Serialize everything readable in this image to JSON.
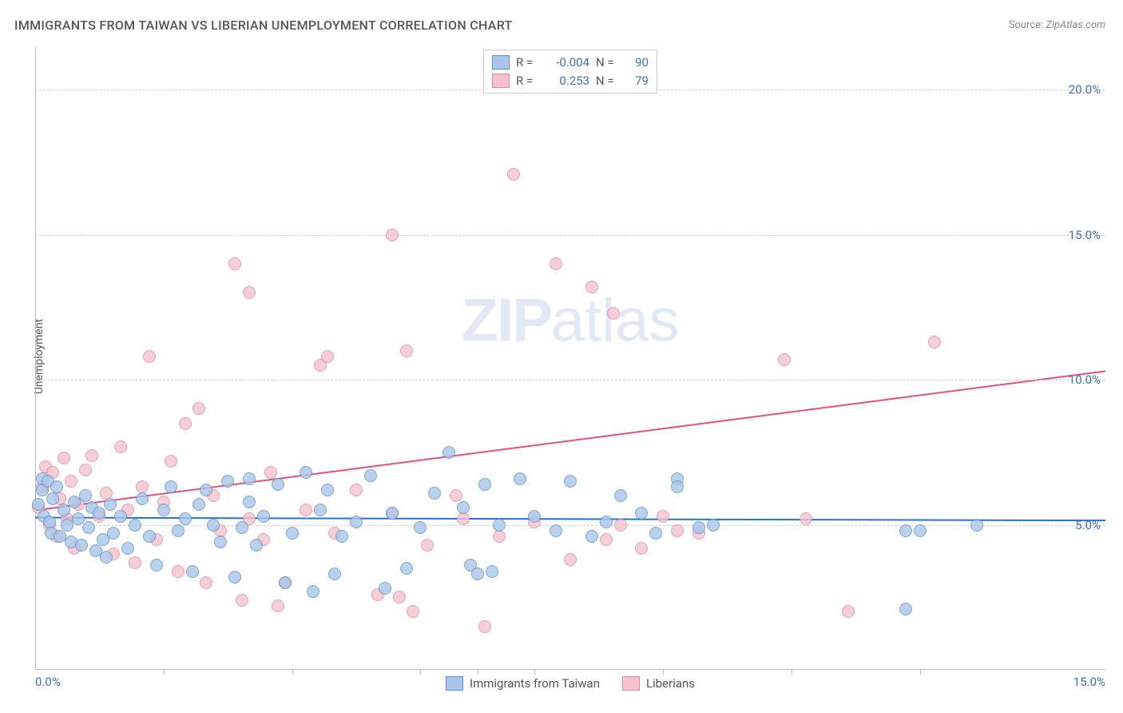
{
  "title": "IMMIGRANTS FROM TAIWAN VS LIBERIAN UNEMPLOYMENT CORRELATION CHART",
  "source_label": "Source:",
  "source_name": "ZipAtlas.com",
  "ylabel": "Unemployment",
  "watermark_zip": "ZIP",
  "watermark_atlas": "atlas",
  "chart": {
    "type": "scatter",
    "xlim": [
      0,
      15
    ],
    "ylim": [
      0,
      21.5
    ],
    "x_ticks": [
      0,
      15
    ],
    "x_tick_labels": [
      "0.0%",
      "15.0%"
    ],
    "x_minor_ticks": [
      1.8,
      3.6,
      5.4,
      6.2,
      7.0,
      8.8,
      10.6,
      12.4
    ],
    "y_ticks": [
      5,
      10,
      15,
      20
    ],
    "y_tick_labels": [
      "5.0%",
      "10.0%",
      "15.0%",
      "20.0%"
    ],
    "grid_color": "#d0d0d0",
    "axis_color": "#bbbbbb",
    "background_color": "#ffffff",
    "marker_radius": 8,
    "marker_border_width": 1,
    "marker_fill_opacity": 0.35,
    "trend_line_width": 2,
    "series": [
      {
        "name": "Immigrants from Taiwan",
        "color_fill": "#a9c6ea",
        "color_stroke": "#5f8fd1",
        "trend_color": "#2e6fd1",
        "R": "-0.004",
        "N": "90",
        "trend": {
          "y_at_x0": 5.25,
          "y_at_xmax": 5.15
        },
        "points": [
          [
            0.05,
            5.7
          ],
          [
            0.1,
            6.6
          ],
          [
            0.1,
            6.2
          ],
          [
            0.12,
            5.3
          ],
          [
            0.18,
            6.5
          ],
          [
            0.2,
            5.1
          ],
          [
            0.22,
            4.7
          ],
          [
            0.25,
            5.9
          ],
          [
            0.3,
            6.3
          ],
          [
            0.35,
            4.6
          ],
          [
            0.4,
            5.5
          ],
          [
            0.45,
            5.0
          ],
          [
            0.5,
            4.4
          ],
          [
            0.55,
            5.8
          ],
          [
            0.6,
            5.2
          ],
          [
            0.65,
            4.3
          ],
          [
            0.7,
            6.0
          ],
          [
            0.75,
            4.9
          ],
          [
            0.8,
            5.6
          ],
          [
            0.85,
            4.1
          ],
          [
            0.9,
            5.4
          ],
          [
            0.95,
            4.5
          ],
          [
            1.0,
            3.9
          ],
          [
            1.05,
            5.7
          ],
          [
            1.1,
            4.7
          ],
          [
            1.2,
            5.3
          ],
          [
            1.3,
            4.2
          ],
          [
            1.4,
            5.0
          ],
          [
            1.5,
            5.9
          ],
          [
            1.6,
            4.6
          ],
          [
            1.7,
            3.6
          ],
          [
            1.8,
            5.5
          ],
          [
            1.9,
            6.3
          ],
          [
            2.0,
            4.8
          ],
          [
            2.1,
            5.2
          ],
          [
            2.2,
            3.4
          ],
          [
            2.3,
            5.7
          ],
          [
            2.4,
            6.2
          ],
          [
            2.5,
            5.0
          ],
          [
            2.6,
            4.4
          ],
          [
            2.7,
            6.5
          ],
          [
            2.8,
            3.2
          ],
          [
            2.9,
            4.9
          ],
          [
            3.0,
            5.8
          ],
          [
            3.0,
            6.6
          ],
          [
            3.1,
            4.3
          ],
          [
            3.2,
            5.3
          ],
          [
            3.4,
            6.4
          ],
          [
            3.5,
            3.0
          ],
          [
            3.6,
            4.7
          ],
          [
            3.8,
            6.8
          ],
          [
            3.9,
            2.7
          ],
          [
            4.0,
            5.5
          ],
          [
            4.1,
            6.2
          ],
          [
            4.2,
            3.3
          ],
          [
            4.3,
            4.6
          ],
          [
            4.5,
            5.1
          ],
          [
            4.7,
            6.7
          ],
          [
            4.9,
            2.8
          ],
          [
            5.0,
            5.4
          ],
          [
            5.2,
            3.5
          ],
          [
            5.4,
            4.9
          ],
          [
            5.6,
            6.1
          ],
          [
            5.8,
            7.5
          ],
          [
            6.0,
            5.6
          ],
          [
            6.1,
            3.6
          ],
          [
            6.2,
            3.3
          ],
          [
            6.3,
            6.4
          ],
          [
            6.4,
            3.4
          ],
          [
            6.5,
            5.0
          ],
          [
            6.8,
            6.6
          ],
          [
            7.0,
            5.3
          ],
          [
            7.3,
            4.8
          ],
          [
            7.5,
            6.5
          ],
          [
            7.8,
            4.6
          ],
          [
            8.0,
            5.1
          ],
          [
            8.2,
            6.0
          ],
          [
            8.5,
            5.4
          ],
          [
            8.7,
            4.7
          ],
          [
            9.0,
            6.6
          ],
          [
            9.0,
            6.3
          ],
          [
            9.3,
            4.9
          ],
          [
            9.5,
            5.0
          ],
          [
            12.2,
            2.1
          ],
          [
            12.2,
            4.8
          ],
          [
            12.4,
            4.8
          ],
          [
            13.2,
            5.0
          ]
        ]
      },
      {
        "name": "Liberians",
        "color_fill": "#f5c2cd",
        "color_stroke": "#e08aa0",
        "trend_color": "#e3517a",
        "R": "0.253",
        "N": "79",
        "trend": {
          "y_at_x0": 5.5,
          "y_at_xmax": 10.3
        },
        "points": [
          [
            0.05,
            5.6
          ],
          [
            0.1,
            6.3
          ],
          [
            0.15,
            7.0
          ],
          [
            0.2,
            5.0
          ],
          [
            0.25,
            6.8
          ],
          [
            0.3,
            4.6
          ],
          [
            0.35,
            5.9
          ],
          [
            0.4,
            7.3
          ],
          [
            0.45,
            5.2
          ],
          [
            0.5,
            6.5
          ],
          [
            0.55,
            4.2
          ],
          [
            0.6,
            5.7
          ],
          [
            0.7,
            6.9
          ],
          [
            0.8,
            7.4
          ],
          [
            0.9,
            5.3
          ],
          [
            1.0,
            6.1
          ],
          [
            1.1,
            4.0
          ],
          [
            1.2,
            7.7
          ],
          [
            1.3,
            5.5
          ],
          [
            1.4,
            3.7
          ],
          [
            1.5,
            6.3
          ],
          [
            1.6,
            10.8
          ],
          [
            1.7,
            4.5
          ],
          [
            1.8,
            5.8
          ],
          [
            1.9,
            7.2
          ],
          [
            2.0,
            3.4
          ],
          [
            2.1,
            8.5
          ],
          [
            2.3,
            9.0
          ],
          [
            2.4,
            3.0
          ],
          [
            2.5,
            6.0
          ],
          [
            2.6,
            4.8
          ],
          [
            2.8,
            14.0
          ],
          [
            2.9,
            2.4
          ],
          [
            3.0,
            5.2
          ],
          [
            3.0,
            13.0
          ],
          [
            3.2,
            4.5
          ],
          [
            3.3,
            6.8
          ],
          [
            3.4,
            2.2
          ],
          [
            3.5,
            3.0
          ],
          [
            3.8,
            5.5
          ],
          [
            4.0,
            10.5
          ],
          [
            4.1,
            10.8
          ],
          [
            4.2,
            4.7
          ],
          [
            4.5,
            6.2
          ],
          [
            4.8,
            2.6
          ],
          [
            5.0,
            5.4
          ],
          [
            5.0,
            15.0
          ],
          [
            5.1,
            2.5
          ],
          [
            5.2,
            11.0
          ],
          [
            5.3,
            2.0
          ],
          [
            5.5,
            4.3
          ],
          [
            5.9,
            6.0
          ],
          [
            6.0,
            5.2
          ],
          [
            6.3,
            1.5
          ],
          [
            6.5,
            4.6
          ],
          [
            6.7,
            17.1
          ],
          [
            7.0,
            5.1
          ],
          [
            7.3,
            14.0
          ],
          [
            7.5,
            3.8
          ],
          [
            7.8,
            13.2
          ],
          [
            8.0,
            4.5
          ],
          [
            8.1,
            12.3
          ],
          [
            8.2,
            5.0
          ],
          [
            8.5,
            4.2
          ],
          [
            8.8,
            5.3
          ],
          [
            9.0,
            4.8
          ],
          [
            9.3,
            4.7
          ],
          [
            10.5,
            10.7
          ],
          [
            10.8,
            5.2
          ],
          [
            11.4,
            2.0
          ],
          [
            12.6,
            11.3
          ]
        ]
      }
    ]
  },
  "legend_top": {
    "R_label": "R =",
    "N_label": "N ="
  }
}
